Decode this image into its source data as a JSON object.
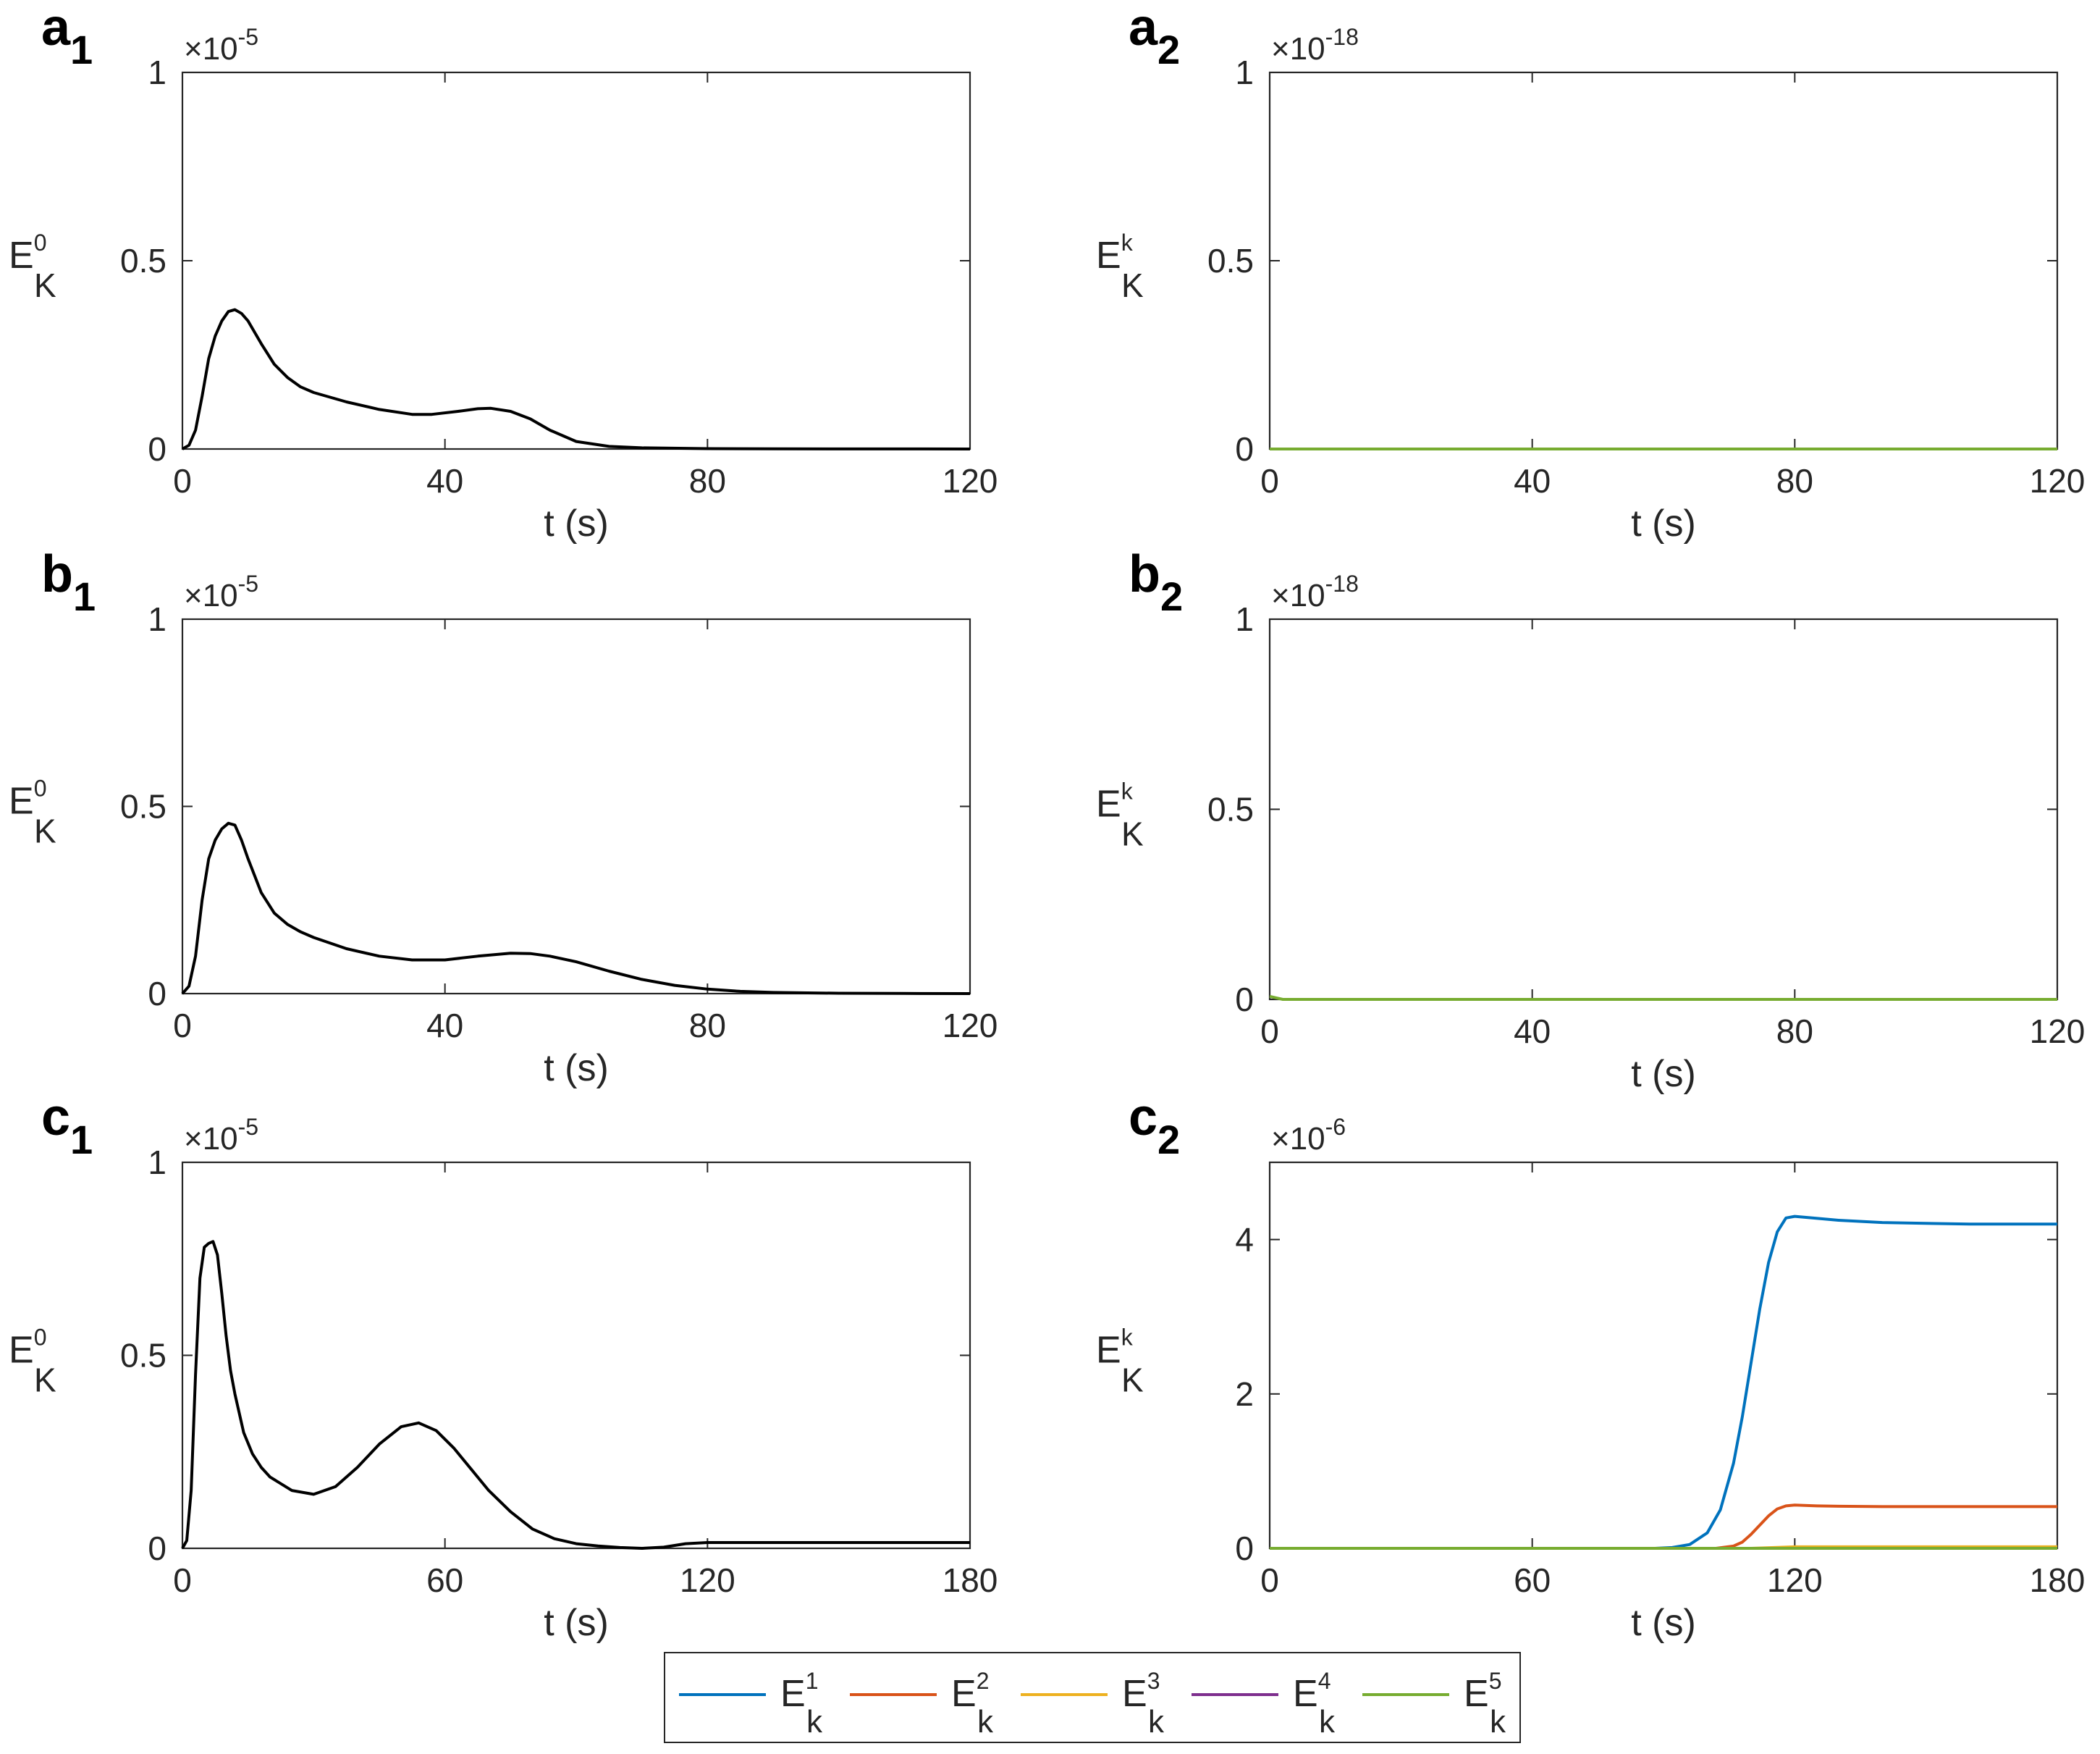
{
  "chart_data": [
    {
      "type": "line",
      "id": "a1",
      "panel_letter": "a",
      "panel_num": "1",
      "xlabel": "t (s)",
      "ylabel": {
        "base": "E",
        "sub": "K",
        "sup": "0"
      },
      "exponent": {
        "base": "×10",
        "power": "-5"
      },
      "xlim": [
        0,
        120
      ],
      "ylim": [
        0,
        1
      ],
      "xticks": [
        0,
        40,
        80,
        120
      ],
      "yticks": [
        0,
        0.5,
        1
      ],
      "ytick_labels": [
        "0",
        "0.5",
        "1"
      ],
      "series": [
        {
          "name": "E_K^0",
          "color": "#000000",
          "x": [
            0,
            1,
            2,
            3,
            4,
            5,
            6,
            7,
            8,
            9,
            10,
            12,
            14,
            16,
            18,
            20,
            25,
            30,
            35,
            38,
            42,
            45,
            47,
            50,
            53,
            56,
            60,
            65,
            70,
            80,
            90,
            100,
            110,
            120
          ],
          "y": [
            0,
            0.01,
            0.05,
            0.14,
            0.24,
            0.3,
            0.34,
            0.365,
            0.37,
            0.36,
            0.34,
            0.28,
            0.225,
            0.19,
            0.165,
            0.15,
            0.125,
            0.105,
            0.092,
            0.092,
            0.1,
            0.107,
            0.108,
            0.1,
            0.08,
            0.05,
            0.02,
            0.007,
            0.003,
            0.001,
            0.0005,
            0.0002,
            0.0001,
            0
          ]
        }
      ]
    },
    {
      "type": "line",
      "id": "a2",
      "panel_letter": "a",
      "panel_num": "2",
      "xlabel": "t (s)",
      "ylabel": {
        "base": "E",
        "sub": "K",
        "sup": "k"
      },
      "exponent": {
        "base": "×10",
        "power": "-18"
      },
      "xlim": [
        0,
        120
      ],
      "ylim": [
        0,
        1
      ],
      "xticks": [
        0,
        40,
        80,
        120
      ],
      "yticks": [
        0,
        0.5,
        1
      ],
      "ytick_labels": [
        "0",
        "0.5",
        "1"
      ],
      "series": [
        {
          "name": "E_k^5",
          "color": "#77AC30",
          "x": [
            0,
            120
          ],
          "y": [
            0,
            0
          ]
        }
      ]
    },
    {
      "type": "line",
      "id": "b1",
      "panel_letter": "b",
      "panel_num": "1",
      "xlabel": "t (s)",
      "ylabel": {
        "base": "E",
        "sub": "K",
        "sup": "0"
      },
      "exponent": {
        "base": "×10",
        "power": "-5"
      },
      "xlim": [
        0,
        120
      ],
      "ylim": [
        0,
        1
      ],
      "xticks": [
        0,
        40,
        80,
        120
      ],
      "yticks": [
        0,
        0.5,
        1
      ],
      "ytick_labels": [
        "0",
        "0.5",
        "1"
      ],
      "series": [
        {
          "name": "E_K^0",
          "color": "#000000",
          "x": [
            0,
            1,
            2,
            3,
            4,
            5,
            6,
            7,
            8,
            9,
            10,
            12,
            14,
            16,
            18,
            20,
            25,
            30,
            35,
            40,
            45,
            50,
            53,
            56,
            60,
            65,
            70,
            75,
            80,
            85,
            90,
            100,
            110,
            120
          ],
          "y": [
            0,
            0.02,
            0.1,
            0.25,
            0.36,
            0.41,
            0.44,
            0.455,
            0.45,
            0.41,
            0.36,
            0.27,
            0.215,
            0.185,
            0.165,
            0.15,
            0.12,
            0.1,
            0.09,
            0.09,
            0.1,
            0.108,
            0.107,
            0.1,
            0.085,
            0.06,
            0.038,
            0.022,
            0.012,
            0.006,
            0.003,
            0.001,
            0.0003,
            0
          ]
        }
      ]
    },
    {
      "type": "line",
      "id": "b2",
      "panel_letter": "b",
      "panel_num": "2",
      "xlabel": "t (s)",
      "ylabel": {
        "base": "E",
        "sub": "K",
        "sup": "k"
      },
      "exponent": {
        "base": "×10",
        "power": "-18"
      },
      "xlim": [
        0,
        120
      ],
      "ylim": [
        0,
        1
      ],
      "xticks": [
        0,
        40,
        80,
        120
      ],
      "yticks": [
        0,
        0.5,
        1
      ],
      "ytick_labels": [
        "0",
        "0.5",
        "1"
      ],
      "series": [
        {
          "name": "E_k^5",
          "color": "#77AC30",
          "x": [
            0,
            1,
            2,
            120
          ],
          "y": [
            0.008,
            0.004,
            0,
            0
          ]
        }
      ]
    },
    {
      "type": "line",
      "id": "c1",
      "panel_letter": "c",
      "panel_num": "1",
      "xlabel": "t (s)",
      "ylabel": {
        "base": "E",
        "sub": "K",
        "sup": "0"
      },
      "exponent": {
        "base": "×10",
        "power": "-5"
      },
      "xlim": [
        0,
        180
      ],
      "ylim": [
        0,
        1
      ],
      "xticks": [
        0,
        60,
        120,
        180
      ],
      "yticks": [
        0,
        0.5,
        1
      ],
      "ytick_labels": [
        "0",
        "0.5",
        "1"
      ],
      "series": [
        {
          "name": "E_K^0",
          "color": "#000000",
          "x": [
            0,
            1,
            2,
            3,
            4,
            5,
            6,
            7,
            8,
            9,
            10,
            11,
            12,
            14,
            16,
            18,
            20,
            25,
            30,
            35,
            40,
            45,
            50,
            54,
            58,
            62,
            66,
            70,
            75,
            80,
            85,
            90,
            95,
            100,
            105,
            110,
            115,
            120,
            150,
            180
          ],
          "y": [
            0,
            0.02,
            0.15,
            0.45,
            0.7,
            0.78,
            0.79,
            0.795,
            0.76,
            0.66,
            0.55,
            0.46,
            0.4,
            0.3,
            0.245,
            0.21,
            0.185,
            0.15,
            0.14,
            0.16,
            0.21,
            0.27,
            0.315,
            0.325,
            0.305,
            0.26,
            0.205,
            0.15,
            0.095,
            0.05,
            0.025,
            0.012,
            0.006,
            0.002,
            0,
            0.003,
            0.012,
            0.015,
            0.015,
            0.015
          ]
        }
      ]
    },
    {
      "type": "line",
      "id": "c2",
      "panel_letter": "c",
      "panel_num": "2",
      "xlabel": "t (s)",
      "ylabel": {
        "base": "E",
        "sub": "K",
        "sup": "k"
      },
      "exponent": {
        "base": "×10",
        "power": "-6"
      },
      "xlim": [
        0,
        180
      ],
      "ylim": [
        0,
        5
      ],
      "xticks": [
        0,
        60,
        120,
        180
      ],
      "yticks": [
        0,
        2,
        4
      ],
      "ytick_labels": [
        "0",
        "2",
        "4"
      ],
      "series": [
        {
          "name": "E_k^1",
          "color": "#0072BD",
          "x": [
            0,
            88,
            92,
            96,
            100,
            103,
            106,
            108,
            110,
            112,
            114,
            116,
            118,
            120,
            124,
            130,
            140,
            150,
            160,
            170,
            180
          ],
          "y": [
            0,
            0,
            0.01,
            0.05,
            0.2,
            0.5,
            1.1,
            1.7,
            2.4,
            3.1,
            3.7,
            4.1,
            4.28,
            4.3,
            4.28,
            4.25,
            4.22,
            4.21,
            4.2,
            4.2,
            4.2
          ]
        },
        {
          "name": "E_k^2",
          "color": "#D95319",
          "x": [
            0,
            102,
            106,
            108,
            110,
            112,
            114,
            116,
            118,
            120,
            125,
            130,
            140,
            160,
            180
          ],
          "y": [
            0,
            0,
            0.03,
            0.08,
            0.18,
            0.3,
            0.42,
            0.51,
            0.55,
            0.56,
            0.55,
            0.545,
            0.54,
            0.54,
            0.54
          ]
        },
        {
          "name": "E_k^3",
          "color": "#EDB120",
          "x": [
            0,
            110,
            120,
            180
          ],
          "y": [
            0,
            0,
            0.02,
            0.02
          ]
        },
        {
          "name": "E_k^4",
          "color": "#7E2F8E",
          "x": [
            0,
            180
          ],
          "y": [
            0,
            0
          ]
        },
        {
          "name": "E_k^5",
          "color": "#77AC30",
          "x": [
            0,
            180
          ],
          "y": [
            0,
            0
          ]
        }
      ]
    }
  ],
  "legend": {
    "entries": [
      {
        "base": "E",
        "sub": "k",
        "sup": "1",
        "color": "#0072BD"
      },
      {
        "base": "E",
        "sub": "k",
        "sup": "2",
        "color": "#D95319"
      },
      {
        "base": "E",
        "sub": "k",
        "sup": "3",
        "color": "#EDB120"
      },
      {
        "base": "E",
        "sub": "k",
        "sup": "4",
        "color": "#7E2F8E"
      },
      {
        "base": "E",
        "sub": "k",
        "sup": "5",
        "color": "#77AC30"
      }
    ]
  }
}
